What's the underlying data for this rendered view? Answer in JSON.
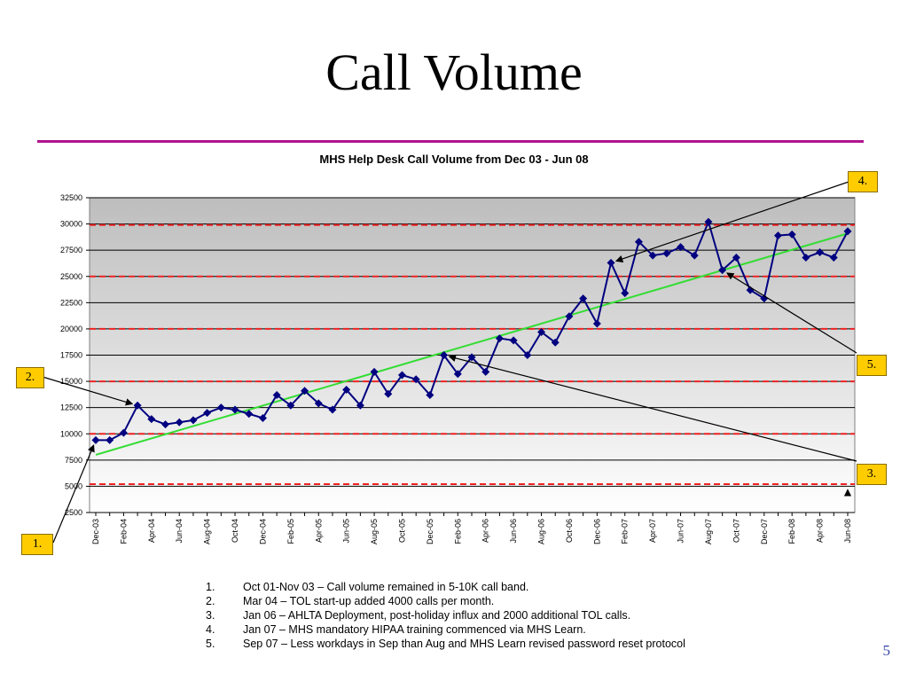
{
  "slide": {
    "title": "Call Volume",
    "page_number": "5",
    "notes": [
      {
        "num": "1.",
        "text": "Oct 01-Nov 03 – Call volume remained in 5-10K call band."
      },
      {
        "num": "2.",
        "text": "Mar 04 – TOL start-up added 4000 calls per month."
      },
      {
        "num": "3.",
        "text": "Jan 06 – AHLTA Deployment, post-holiday influx and 2000 additional TOL calls."
      },
      {
        "num": "4.",
        "text": "Jan 07 – MHS mandatory HIPAA training commenced via MHS Learn."
      },
      {
        "num": "5.",
        "text": "Sep 07 – Less workdays in Sep than Aug and MHS Learn revised password reset protocol"
      }
    ],
    "callouts": [
      {
        "label": "1.",
        "target_month": "Dec-03"
      },
      {
        "label": "2.",
        "target_month": "Mar-04"
      },
      {
        "label": "3.",
        "target_month": "Jan-06"
      },
      {
        "label": "4.",
        "target_month": "Jan-07"
      },
      {
        "label": "5.",
        "target_month": "Sep-07"
      }
    ]
  },
  "colors": {
    "accent_rule": "#b0158f",
    "series_line": "#000080",
    "marker": "#000080",
    "trend_line": "#33dd33",
    "band_line": "#ee2222",
    "callout_fill": "#ffcc00",
    "page_number": "#3344aa"
  },
  "chart_data": {
    "type": "line",
    "title": "MHS Help Desk Call Volume from Dec 03 - Jun 08",
    "xlabel": "",
    "ylabel": "",
    "ylim": [
      2500,
      32500
    ],
    "yticks": [
      2500,
      5000,
      7500,
      10000,
      12500,
      15000,
      17500,
      20000,
      22500,
      25000,
      27500,
      30000,
      32500
    ],
    "categories": [
      "Dec-03",
      "Jan-04",
      "Feb-04",
      "Mar-04",
      "Apr-04",
      "May-04",
      "Jun-04",
      "Jul-04",
      "Aug-04",
      "Sep-04",
      "Oct-04",
      "Nov-04",
      "Dec-04",
      "Jan-05",
      "Feb-05",
      "Mar-05",
      "Apr-05",
      "May-05",
      "Jun-05",
      "Jul-05",
      "Aug-05",
      "Sep-05",
      "Oct-05",
      "Nov-05",
      "Dec-05",
      "Jan-06",
      "Feb-06",
      "Mar-06",
      "Apr-06",
      "May-06",
      "Jun-06",
      "Jul-06",
      "Aug-06",
      "Sep-06",
      "Oct-06",
      "Nov-06",
      "Dec-06",
      "Jan-07",
      "Feb-07",
      "Mar-07",
      "Apr-07",
      "May-07",
      "Jun-07",
      "Jul-07",
      "Aug-07",
      "Sep-07",
      "Oct-07",
      "Nov-07",
      "Dec-07",
      "Jan-08",
      "Feb-08",
      "Mar-08",
      "Apr-08",
      "May-08",
      "Jun-08"
    ],
    "tick_labels": [
      "Dec-03",
      "Feb-04",
      "Apr-04",
      "Jun-04",
      "Aug-04",
      "Oct-04",
      "Dec-04",
      "Feb-05",
      "Apr-05",
      "Jun-05",
      "Aug-05",
      "Oct-05",
      "Dec-05",
      "Feb-06",
      "Apr-06",
      "Jun-06",
      "Aug-06",
      "Oct-06",
      "Dec-06",
      "Feb-07",
      "Apr-07",
      "Jun-07",
      "Aug-07",
      "Oct-07",
      "Dec-07",
      "Feb-08",
      "Apr-08",
      "Jun-08"
    ],
    "series": [
      {
        "values": [
          9400,
          9400,
          10100,
          12700,
          11400,
          10900,
          11100,
          11300,
          12000,
          12500,
          12300,
          11900,
          11500,
          13700,
          12700,
          14100,
          12900,
          12300,
          14200,
          12700,
          15900,
          13800,
          15600,
          15200,
          13700,
          17500,
          15700,
          17300,
          15900,
          19100,
          18900,
          17500,
          19700,
          18700,
          21200,
          22900,
          20500,
          26300,
          23400,
          28300,
          27000,
          27200,
          27800,
          27000,
          30200,
          25600,
          26800,
          23700,
          22900,
          28900,
          29000,
          26800,
          27300,
          26800,
          29300
        ]
      }
    ],
    "trend": {
      "start": 8000,
      "end": 29100
    },
    "band_lines": [
      5200,
      10000,
      15000,
      20000,
      25000,
      29900
    ],
    "legend": "none",
    "grid": true
  }
}
